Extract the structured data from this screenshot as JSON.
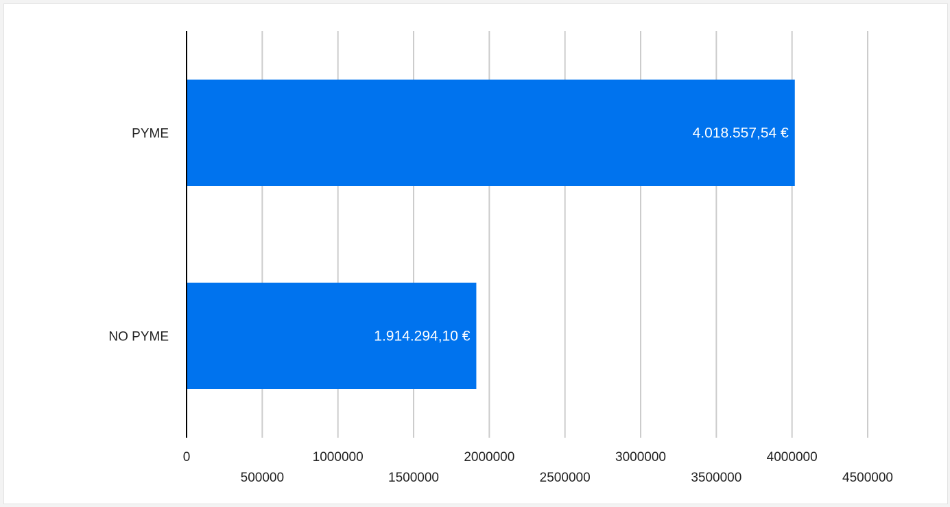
{
  "chart_data": {
    "type": "bar",
    "orientation": "horizontal",
    "categories": [
      "PYME",
      "NO PYME"
    ],
    "values": [
      4018557.54,
      1914294.1
    ],
    "data_labels": [
      "4.018.557,54 €",
      "1.914.294,10 €"
    ],
    "title": "",
    "xlabel": "",
    "ylabel": "",
    "xlim": [
      0,
      4500000
    ],
    "x_ticks": [
      0,
      500000,
      1000000,
      1500000,
      2000000,
      2500000,
      3000000,
      3500000,
      4000000,
      4500000
    ],
    "x_tick_labels": [
      "0",
      "500000",
      "1000000",
      "1500000",
      "2000000",
      "2500000",
      "3000000",
      "3500000",
      "4000000",
      "4500000"
    ],
    "grid": true,
    "legend": "none",
    "colors": {
      "bar": "#0073ee",
      "grid": "#cccccc",
      "axis": "#000000",
      "data_label": "#ffffff"
    }
  }
}
